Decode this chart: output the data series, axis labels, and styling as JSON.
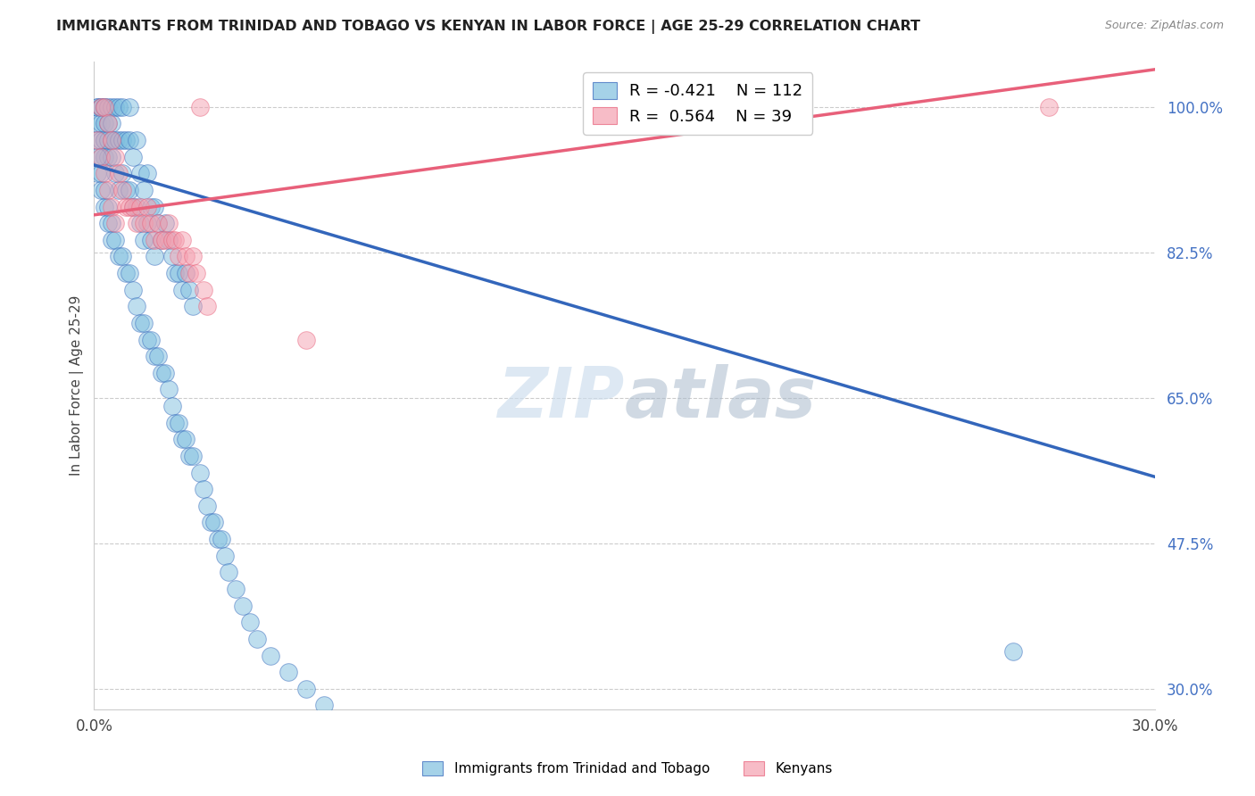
{
  "title": "IMMIGRANTS FROM TRINIDAD AND TOBAGO VS KENYAN IN LABOR FORCE | AGE 25-29 CORRELATION CHART",
  "source": "Source: ZipAtlas.com",
  "ylabel": "In Labor Force | Age 25-29",
  "xlim": [
    0.0,
    0.3
  ],
  "ylim": [
    0.275,
    1.055
  ],
  "yticks": [
    0.3,
    0.475,
    0.65,
    0.825,
    1.0
  ],
  "ytick_labels": [
    "30.0%",
    "47.5%",
    "65.0%",
    "82.5%",
    "100.0%"
  ],
  "xticks": [
    0.0,
    0.05,
    0.1,
    0.15,
    0.2,
    0.25,
    0.3
  ],
  "xtick_labels": [
    "0.0%",
    "",
    "",
    "",
    "",
    "",
    "30.0%"
  ],
  "blue_R": -0.421,
  "blue_N": 112,
  "pink_R": 0.564,
  "pink_N": 39,
  "blue_color": "#7fbfdf",
  "pink_color": "#f4a0b0",
  "blue_line_color": "#3366bb",
  "pink_line_color": "#e8607a",
  "watermark_zip": "ZIP",
  "watermark_atlas": "atlas",
  "legend_label_blue": "Immigrants from Trinidad and Tobago",
  "legend_label_pink": "Kenyans",
  "blue_line_x0": 0.0,
  "blue_line_x1": 0.3,
  "blue_line_y0": 0.93,
  "blue_line_y1": 0.555,
  "pink_line_x0": 0.0,
  "pink_line_x1": 0.3,
  "pink_line_y0": 0.87,
  "pink_line_y1": 1.045,
  "blue_scatter_x": [
    0.001,
    0.001,
    0.001,
    0.001,
    0.002,
    0.002,
    0.002,
    0.002,
    0.002,
    0.003,
    0.003,
    0.003,
    0.003,
    0.003,
    0.004,
    0.004,
    0.004,
    0.004,
    0.005,
    0.005,
    0.005,
    0.005,
    0.006,
    0.006,
    0.006,
    0.007,
    0.007,
    0.007,
    0.008,
    0.008,
    0.008,
    0.009,
    0.009,
    0.01,
    0.01,
    0.01,
    0.011,
    0.011,
    0.012,
    0.012,
    0.013,
    0.013,
    0.014,
    0.014,
    0.015,
    0.015,
    0.016,
    0.016,
    0.017,
    0.017,
    0.018,
    0.019,
    0.02,
    0.021,
    0.022,
    0.023,
    0.024,
    0.025,
    0.026,
    0.027,
    0.028,
    0.001,
    0.001,
    0.002,
    0.002,
    0.003,
    0.003,
    0.004,
    0.004,
    0.005,
    0.005,
    0.006,
    0.007,
    0.008,
    0.009,
    0.01,
    0.011,
    0.012,
    0.013,
    0.014,
    0.015,
    0.016,
    0.017,
    0.018,
    0.019,
    0.02,
    0.021,
    0.022,
    0.023,
    0.024,
    0.025,
    0.026,
    0.027,
    0.028,
    0.03,
    0.031,
    0.032,
    0.033,
    0.034,
    0.035,
    0.036,
    0.037,
    0.038,
    0.04,
    0.042,
    0.044,
    0.046,
    0.05,
    0.055,
    0.06,
    0.065,
    0.26
  ],
  "blue_scatter_y": [
    1.0,
    1.0,
    0.98,
    0.96,
    1.0,
    1.0,
    0.98,
    0.96,
    0.94,
    1.0,
    1.0,
    0.98,
    0.96,
    0.94,
    1.0,
    0.98,
    0.96,
    0.94,
    1.0,
    0.98,
    0.96,
    0.94,
    1.0,
    0.96,
    0.92,
    1.0,
    0.96,
    0.9,
    1.0,
    0.96,
    0.92,
    0.96,
    0.9,
    1.0,
    0.96,
    0.9,
    0.94,
    0.88,
    0.96,
    0.88,
    0.92,
    0.86,
    0.9,
    0.84,
    0.92,
    0.86,
    0.88,
    0.84,
    0.88,
    0.82,
    0.86,
    0.84,
    0.86,
    0.84,
    0.82,
    0.8,
    0.8,
    0.78,
    0.8,
    0.78,
    0.76,
    0.94,
    0.92,
    0.92,
    0.9,
    0.9,
    0.88,
    0.88,
    0.86,
    0.86,
    0.84,
    0.84,
    0.82,
    0.82,
    0.8,
    0.8,
    0.78,
    0.76,
    0.74,
    0.74,
    0.72,
    0.72,
    0.7,
    0.7,
    0.68,
    0.68,
    0.66,
    0.64,
    0.62,
    0.62,
    0.6,
    0.6,
    0.58,
    0.58,
    0.56,
    0.54,
    0.52,
    0.5,
    0.5,
    0.48,
    0.48,
    0.46,
    0.44,
    0.42,
    0.4,
    0.38,
    0.36,
    0.34,
    0.32,
    0.3,
    0.28,
    0.345
  ],
  "pink_scatter_x": [
    0.001,
    0.002,
    0.002,
    0.003,
    0.003,
    0.004,
    0.004,
    0.005,
    0.005,
    0.006,
    0.006,
    0.007,
    0.008,
    0.009,
    0.01,
    0.011,
    0.012,
    0.013,
    0.014,
    0.015,
    0.016,
    0.017,
    0.018,
    0.019,
    0.02,
    0.021,
    0.022,
    0.023,
    0.024,
    0.025,
    0.026,
    0.027,
    0.028,
    0.029,
    0.03,
    0.031,
    0.032,
    0.06,
    0.27
  ],
  "pink_scatter_y": [
    0.96,
    1.0,
    0.94,
    1.0,
    0.92,
    0.98,
    0.9,
    0.96,
    0.88,
    0.94,
    0.86,
    0.92,
    0.9,
    0.88,
    0.88,
    0.88,
    0.86,
    0.88,
    0.86,
    0.88,
    0.86,
    0.84,
    0.86,
    0.84,
    0.84,
    0.86,
    0.84,
    0.84,
    0.82,
    0.84,
    0.82,
    0.8,
    0.82,
    0.8,
    1.0,
    0.78,
    0.76,
    0.72,
    1.0
  ]
}
